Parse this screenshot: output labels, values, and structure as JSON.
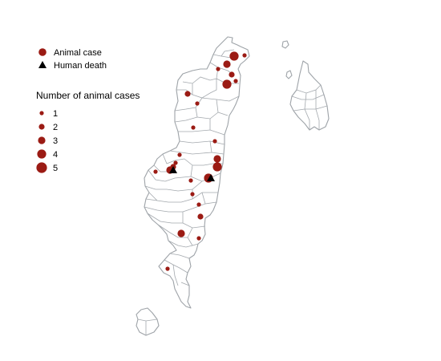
{
  "legend": {
    "items": [
      {
        "label": "Animal case",
        "symbol": "circle",
        "color": "#9b1b14"
      },
      {
        "label": "Human death",
        "symbol": "triangle",
        "color": "#000000"
      }
    ],
    "size_title": "Number of animal cases",
    "size_items": [
      {
        "label": "1",
        "value": 1
      },
      {
        "label": "2",
        "value": 2
      },
      {
        "label": "3",
        "value": 3
      },
      {
        "label": "4",
        "value": 4
      },
      {
        "label": "5",
        "value": 5
      }
    ]
  },
  "colors": {
    "animal_case": "#9b1b14",
    "human_death": "#000000",
    "boundary": "#a3a8ad",
    "background": "#ffffff"
  },
  "points": {
    "animal_cases": [
      {
        "cases": 3
      },
      {
        "cases": 1
      },
      {
        "cases": 4
      },
      {
        "cases": 4
      },
      {
        "cases": 2
      },
      {
        "cases": 1
      },
      {
        "cases": 1
      },
      {
        "cases": 2
      },
      {
        "cases": 1
      },
      {
        "cases": 1
      },
      {
        "cases": 1
      },
      {
        "cases": 1
      },
      {
        "cases": 1
      },
      {
        "cases": 2
      },
      {
        "cases": 1
      },
      {
        "cases": 1
      },
      {
        "cases": 3
      },
      {
        "cases": 4
      },
      {
        "cases": 4
      },
      {
        "cases": 1
      },
      {
        "cases": 1
      },
      {
        "cases": 2
      },
      {
        "cases": 1
      },
      {
        "cases": 3
      },
      {
        "cases": 1
      },
      {
        "cases": 1
      },
      {
        "cases": 3
      }
    ],
    "human_deaths": [
      {
        "count": 1
      },
      {
        "count": 1
      }
    ]
  }
}
